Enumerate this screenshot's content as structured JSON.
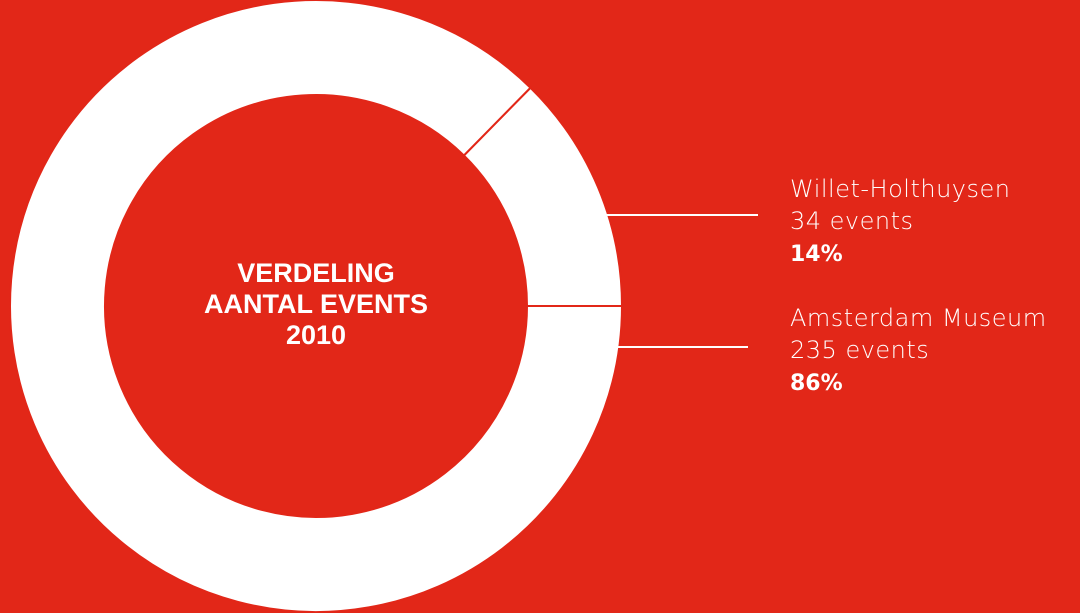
{
  "chart_data": {
    "type": "donut",
    "title": [
      "VERDELING",
      "AANTAL EVENTS",
      "2010"
    ],
    "categories": [
      "Willet-Holthuysen",
      "Amsterdam Museum"
    ],
    "values": [
      34,
      235
    ],
    "value_labels": [
      "34 events",
      "235 events"
    ],
    "percentages": [
      14,
      86
    ],
    "percentage_labels": [
      "14%",
      "86%"
    ],
    "colors": [
      "#ffffff",
      "#ffffff"
    ],
    "background": "#e22718"
  }
}
